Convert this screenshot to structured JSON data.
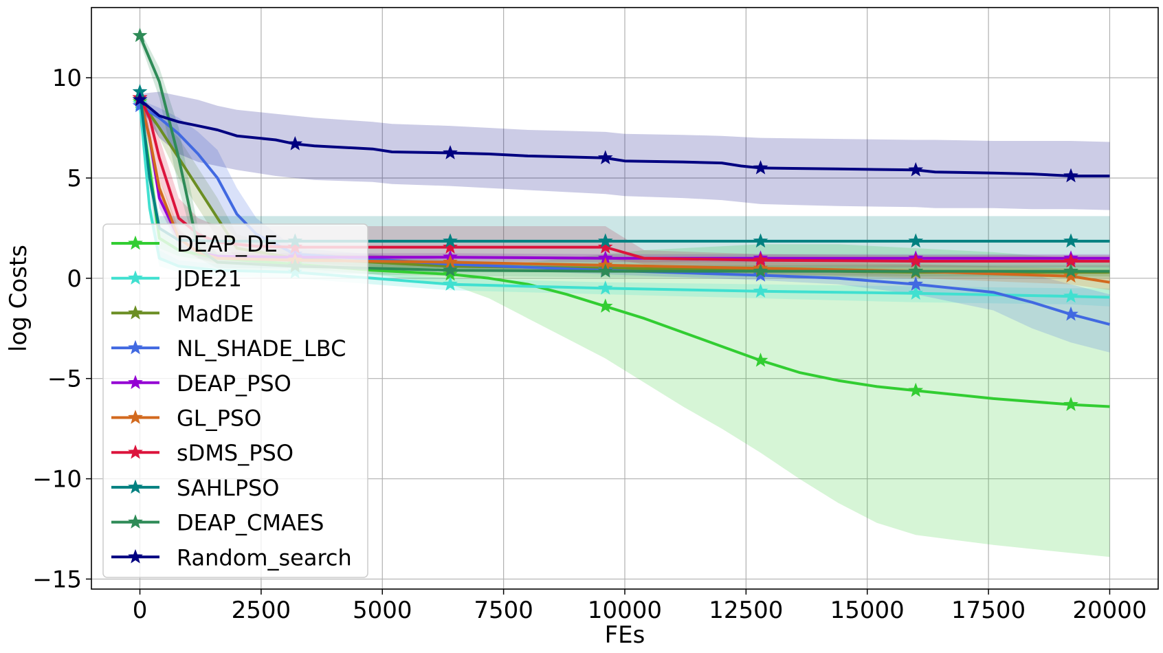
{
  "chart_data": {
    "type": "line",
    "title": "",
    "xlabel": "FEs",
    "ylabel": "log Costs",
    "xlim": [
      -1000,
      21000
    ],
    "ylim": [
      -15.5,
      13.5
    ],
    "xticks": [
      0,
      2500,
      5000,
      7500,
      10000,
      12500,
      15000,
      17500,
      20000
    ],
    "yticks": [
      -15,
      -10,
      -5,
      0,
      5,
      10
    ],
    "grid": true,
    "legend_position": "lower-left",
    "marker": "star",
    "series": [
      {
        "name": "DEAP_DE",
        "color": "#32cd32",
        "x": [
          0,
          200,
          400,
          800,
          1600,
          3200,
          4800,
          6400,
          7200,
          8000,
          8800,
          9600,
          10400,
          11200,
          12000,
          12800,
          13600,
          14400,
          15200,
          16000,
          17600,
          19200,
          20000
        ],
        "y": [
          8.8,
          5.5,
          2.0,
          1.4,
          1.0,
          0.7,
          0.4,
          0.2,
          0.0,
          -0.3,
          -0.8,
          -1.4,
          -2.0,
          -2.7,
          -3.4,
          -4.1,
          -4.7,
          -5.1,
          -5.4,
          -5.6,
          -6.0,
          -6.3,
          -6.4
        ],
        "lower": [
          8.5,
          5.0,
          1.5,
          1.1,
          0.8,
          0.5,
          0.2,
          -0.3,
          -1.0,
          -2.0,
          -3.0,
          -4.0,
          -5.2,
          -6.4,
          -7.5,
          -8.7,
          -10.0,
          -11.2,
          -12.2,
          -12.8,
          -13.3,
          -13.7,
          -13.9
        ],
        "upper": [
          9.2,
          7.0,
          2.5,
          1.7,
          1.2,
          0.9,
          0.7,
          0.6,
          0.7,
          0.8,
          1.0,
          1.2,
          1.4,
          1.5,
          1.6,
          1.7,
          1.7,
          1.7,
          1.6,
          1.5,
          1.3,
          1.0,
          0.8
        ],
        "markers_x": [
          0,
          3200,
          6400,
          9600,
          12800,
          16000,
          19200
        ]
      },
      {
        "name": "JDE21",
        "color": "#40e0d0",
        "x": [
          0,
          200,
          400,
          800,
          1600,
          3200,
          4800,
          6400,
          9600,
          12800,
          16000,
          19200,
          20000
        ],
        "y": [
          8.7,
          3.5,
          1.0,
          0.6,
          0.4,
          0.3,
          0.0,
          -0.3,
          -0.5,
          -0.65,
          -0.75,
          -0.9,
          -0.95
        ],
        "lower": [
          8.4,
          3.0,
          0.6,
          0.3,
          0.1,
          0.0,
          -0.3,
          -0.6,
          -0.8,
          -1.0,
          -1.2,
          -1.3,
          -1.4
        ],
        "upper": [
          9.0,
          4.0,
          1.4,
          0.9,
          0.7,
          0.6,
          0.3,
          0.0,
          -0.2,
          -0.3,
          -0.4,
          -0.5,
          -0.5
        ],
        "markers_x": [
          0,
          3200,
          6400,
          9600,
          12800,
          16000,
          19200
        ]
      },
      {
        "name": "MadDE",
        "color": "#6b8e23",
        "x": [
          0,
          400,
          800,
          1200,
          1600,
          2000,
          3200,
          6400,
          9600,
          12800,
          16000,
          19200,
          20000
        ],
        "y": [
          8.9,
          7.5,
          6.0,
          4.5,
          3.0,
          1.5,
          1.0,
          0.6,
          0.5,
          0.4,
          0.3,
          0.3,
          0.3
        ],
        "lower": [
          8.6,
          7.0,
          5.0,
          3.5,
          2.0,
          1.0,
          0.8,
          0.4,
          0.3,
          0.2,
          0.1,
          0.1,
          0.1
        ],
        "upper": [
          9.2,
          8.0,
          7.0,
          5.5,
          4.0,
          2.2,
          1.3,
          0.8,
          0.7,
          0.6,
          0.5,
          0.5,
          0.5
        ],
        "markers_x": [
          0,
          3200,
          6400,
          9600,
          12800,
          16000,
          19200
        ]
      },
      {
        "name": "NL_SHADE_LBC",
        "color": "#4169e1",
        "x": [
          0,
          400,
          800,
          1200,
          1600,
          2000,
          2400,
          3200,
          6400,
          9600,
          12800,
          14400,
          16000,
          17600,
          18400,
          19200,
          20000
        ],
        "y": [
          8.6,
          8.0,
          7.2,
          6.2,
          5.0,
          3.2,
          2.2,
          1.2,
          0.7,
          0.4,
          0.15,
          0.0,
          -0.3,
          -0.7,
          -1.2,
          -1.8,
          -2.3
        ],
        "lower": [
          8.3,
          7.5,
          6.0,
          4.5,
          3.0,
          2.0,
          1.6,
          1.0,
          0.5,
          0.2,
          -0.1,
          -0.3,
          -0.8,
          -1.6,
          -2.5,
          -3.2,
          -3.7
        ],
        "upper": [
          8.9,
          8.5,
          8.0,
          7.3,
          6.4,
          4.5,
          3.0,
          1.5,
          0.9,
          0.6,
          0.4,
          0.3,
          0.2,
          0.2,
          0.2,
          -0.3,
          -0.8
        ],
        "markers_x": [
          0,
          3200,
          6400,
          9600,
          12800,
          16000,
          19200
        ]
      },
      {
        "name": "DEAP_PSO",
        "color": "#9400d3",
        "x": [
          0,
          200,
          400,
          800,
          1200,
          1600,
          3200,
          6400,
          9600,
          12800,
          16000,
          19200,
          20000
        ],
        "y": [
          9.0,
          7.0,
          4.0,
          2.0,
          1.3,
          1.1,
          1.05,
          1.05,
          1.0,
          1.0,
          1.0,
          1.0,
          1.0
        ],
        "lower": [
          8.7,
          6.5,
          3.5,
          1.6,
          1.0,
          0.9,
          0.85,
          0.85,
          0.8,
          0.8,
          0.8,
          0.8,
          0.8
        ],
        "upper": [
          9.3,
          7.5,
          4.5,
          2.4,
          1.6,
          1.3,
          1.25,
          1.25,
          1.2,
          1.2,
          1.2,
          1.2,
          1.2
        ],
        "markers_x": [
          0,
          3200,
          6400,
          9600,
          12800,
          16000,
          19200
        ]
      },
      {
        "name": "GL_PSO",
        "color": "#d2691e",
        "x": [
          0,
          200,
          400,
          800,
          1200,
          1600,
          3200,
          6400,
          9600,
          12800,
          16000,
          19200,
          20000
        ],
        "y": [
          9.0,
          7.0,
          4.5,
          2.0,
          1.3,
          1.0,
          0.9,
          0.8,
          0.65,
          0.5,
          0.35,
          0.1,
          -0.2
        ],
        "lower": [
          8.7,
          6.5,
          4.0,
          1.5,
          1.0,
          0.7,
          0.6,
          0.5,
          0.35,
          0.2,
          0.0,
          -0.3,
          -0.6
        ],
        "upper": [
          9.3,
          7.5,
          5.0,
          2.5,
          1.6,
          1.3,
          1.2,
          1.1,
          0.95,
          0.8,
          0.7,
          0.5,
          0.2
        ],
        "markers_x": [
          0,
          3200,
          6400,
          9600,
          12800,
          16000,
          19200
        ]
      },
      {
        "name": "sDMS_PSO",
        "color": "#dc143c",
        "x": [
          0,
          200,
          400,
          800,
          1200,
          1600,
          2400,
          3200,
          6400,
          9600,
          10400,
          12800,
          16000,
          19200,
          20000
        ],
        "y": [
          9.0,
          8.0,
          6.0,
          3.0,
          2.2,
          1.8,
          1.6,
          1.55,
          1.55,
          1.55,
          1.0,
          0.9,
          0.85,
          0.85,
          0.85
        ],
        "lower": [
          8.7,
          7.5,
          5.0,
          2.2,
          1.6,
          1.3,
          1.1,
          1.0,
          1.0,
          1.0,
          0.7,
          0.6,
          0.55,
          0.55,
          0.55
        ],
        "upper": [
          9.3,
          8.5,
          7.0,
          4.0,
          3.0,
          2.6,
          2.6,
          2.6,
          2.6,
          2.6,
          1.4,
          1.2,
          1.15,
          1.15,
          1.15
        ],
        "markers_x": [
          0,
          3200,
          6400,
          9600,
          12800,
          16000,
          19200
        ]
      },
      {
        "name": "SAHLPSO",
        "color": "#008080",
        "x": [
          0,
          200,
          400,
          800,
          1600,
          3200,
          6400,
          9600,
          12800,
          16000,
          19200,
          20000
        ],
        "y": [
          9.3,
          5.0,
          2.5,
          1.9,
          1.85,
          1.85,
          1.85,
          1.85,
          1.85,
          1.85,
          1.85,
          1.85
        ],
        "lower": [
          9.0,
          4.5,
          0.9,
          0.6,
          0.5,
          0.5,
          0.5,
          0.5,
          0.5,
          0.5,
          0.5,
          0.5
        ],
        "upper": [
          9.6,
          5.5,
          3.1,
          3.1,
          3.1,
          3.1,
          3.1,
          3.1,
          3.1,
          3.1,
          3.1,
          3.1
        ],
        "markers_x": [
          0,
          3200,
          6400,
          9600,
          12800,
          16000,
          19200
        ]
      },
      {
        "name": "DEAP_CMAES",
        "color": "#2e8b57",
        "x": [
          0,
          400,
          800,
          1200,
          1600,
          3200,
          6400,
          9600,
          12800,
          16000,
          19200,
          20000
        ],
        "y": [
          12.1,
          9.8,
          6.0,
          1.5,
          0.8,
          0.6,
          0.4,
          0.35,
          0.35,
          0.35,
          0.35,
          0.35
        ],
        "lower": [
          11.8,
          9.0,
          4.5,
          1.0,
          0.5,
          0.3,
          0.1,
          0.05,
          0.05,
          0.05,
          0.05,
          0.05
        ],
        "upper": [
          12.4,
          10.5,
          7.5,
          2.5,
          1.2,
          0.9,
          0.7,
          0.65,
          0.65,
          0.65,
          0.65,
          0.65
        ],
        "markers_x": [
          0,
          3200,
          6400,
          9600,
          12800,
          16000,
          19200
        ]
      },
      {
        "name": "Random_search",
        "color": "#000080",
        "x": [
          0,
          400,
          800,
          1200,
          1600,
          2000,
          2800,
          3200,
          3600,
          4800,
          5200,
          6400,
          7200,
          8000,
          8800,
          9600,
          10000,
          11200,
          12000,
          12400,
          12800,
          14400,
          16000,
          16400,
          17600,
          18400,
          19200,
          20000
        ],
        "y": [
          8.9,
          8.1,
          7.8,
          7.6,
          7.4,
          7.1,
          6.9,
          6.7,
          6.6,
          6.45,
          6.3,
          6.25,
          6.2,
          6.1,
          6.05,
          6.0,
          5.85,
          5.8,
          5.75,
          5.6,
          5.5,
          5.45,
          5.4,
          5.3,
          5.25,
          5.2,
          5.1,
          5.1
        ],
        "lower": [
          8.6,
          7.0,
          6.2,
          5.8,
          5.6,
          5.4,
          5.1,
          5.0,
          4.9,
          4.8,
          4.7,
          4.6,
          4.5,
          4.4,
          4.3,
          4.2,
          4.1,
          4.0,
          3.9,
          3.8,
          3.7,
          3.6,
          3.55,
          3.5,
          3.5,
          3.45,
          3.45,
          3.4
        ],
        "upper": [
          9.2,
          9.3,
          9.1,
          8.9,
          8.6,
          8.4,
          8.2,
          8.1,
          8.0,
          7.8,
          7.7,
          7.6,
          7.5,
          7.4,
          7.35,
          7.3,
          7.2,
          7.15,
          7.1,
          7.05,
          7.0,
          6.95,
          6.9,
          6.9,
          6.85,
          6.85,
          6.85,
          6.8
        ],
        "markers_x": [
          0,
          3200,
          6400,
          9600,
          12800,
          16000,
          19200
        ]
      }
    ]
  }
}
